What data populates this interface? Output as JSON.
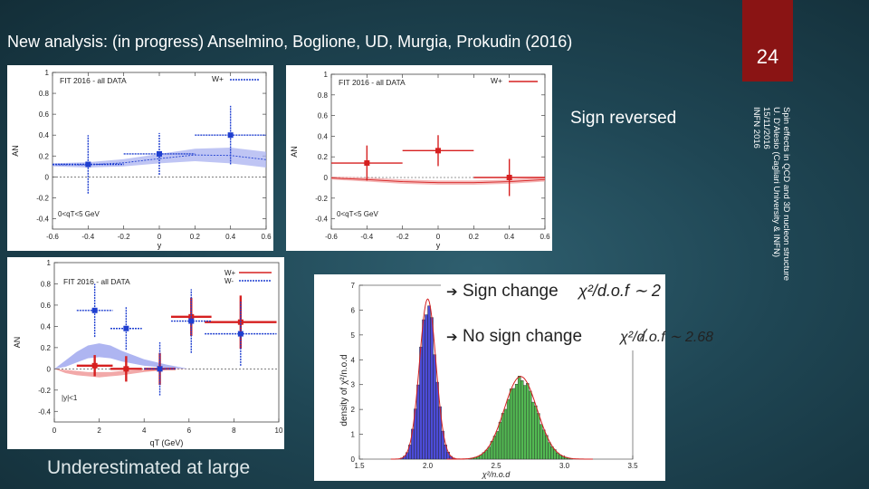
{
  "title": "New analysis: (in progress) Anselmino, Boglione, UD, Murgia, Prokudin (2016)",
  "slide_number": "24",
  "side_note": [
    "Spin effects in QCD and 3D nucleon structure",
    "U. D'Alesio (Cagliari University & INFN)",
    "15/11/2016",
    "INFN 2016"
  ],
  "sign_reversed": "Sign reversed",
  "underestimated": "Underestimated at large",
  "chart_data": [
    {
      "type": "scatter",
      "panel": "top-left",
      "title": "FIT 2016 - all DATA",
      "legend": [
        "W+"
      ],
      "cut": "0<qT<5 GeV",
      "xlabel": "y",
      "ylabel": "AN",
      "xlim": [
        -0.6,
        0.6
      ],
      "ylim": [
        -0.5,
        1.0
      ],
      "xticks": [
        "-0.6",
        "-0.4",
        "-0.2",
        "0",
        "0.2",
        "0.4",
        "0.6"
      ],
      "yticks": [
        "-0.4",
        "-0.2",
        "0",
        "0.2",
        "0.4",
        "0.6",
        "0.8",
        "1"
      ],
      "points": [
        {
          "x": -0.4,
          "y": 0.12,
          "xerr": 0.2,
          "yerr": 0.28
        },
        {
          "x": 0.0,
          "y": 0.22,
          "xerr": 0.2,
          "yerr": 0.2
        },
        {
          "x": 0.4,
          "y": 0.4,
          "xerr": 0.2,
          "yerr": 0.28
        }
      ],
      "band": {
        "x": [
          -0.6,
          -0.4,
          -0.2,
          0,
          0.2,
          0.4,
          0.6
        ],
        "lo": [
          0.1,
          0.09,
          0.1,
          0.13,
          0.15,
          0.13,
          0.09
        ],
        "hi": [
          0.13,
          0.14,
          0.17,
          0.22,
          0.27,
          0.28,
          0.24
        ]
      }
    },
    {
      "type": "scatter",
      "panel": "top-right",
      "title": "FIT 2016 - all DATA",
      "legend": [
        "W+"
      ],
      "cut": "0<qT<5 GeV",
      "xlabel": "y",
      "ylabel": "AN",
      "xlim": [
        -0.6,
        0.6
      ],
      "ylim": [
        -0.5,
        1.0
      ],
      "xticks": [
        "-0.6",
        "-0.4",
        "-0.2",
        "0",
        "0.2",
        "0.4",
        "0.6"
      ],
      "yticks": [
        "-0.4",
        "-0.2",
        "0",
        "0.2",
        "0.4",
        "0.6",
        "0.8",
        "1"
      ],
      "points": [
        {
          "x": -0.4,
          "y": 0.14,
          "xerr": 0.2,
          "yerr": 0.17
        },
        {
          "x": 0.0,
          "y": 0.26,
          "xerr": 0.2,
          "yerr": 0.15
        },
        {
          "x": 0.4,
          "y": 0.0,
          "xerr": 0.2,
          "yerr": 0.18
        }
      ],
      "band": {
        "x": [
          -0.6,
          -0.4,
          -0.2,
          0,
          0.2,
          0.4,
          0.6
        ],
        "lo": [
          -0.02,
          -0.04,
          -0.06,
          -0.07,
          -0.07,
          -0.06,
          -0.04
        ],
        "hi": [
          0.01,
          0.0,
          -0.02,
          -0.03,
          -0.03,
          -0.02,
          0.0
        ]
      }
    },
    {
      "type": "scatter",
      "panel": "bottom-left",
      "title": "FIT 2016 - all DATA",
      "legend": [
        "W+",
        "W-"
      ],
      "cut": "|y|<1",
      "xlabel": "qT (GeV)",
      "ylabel": "AN",
      "xlim": [
        0,
        10
      ],
      "ylim": [
        -0.5,
        1.0
      ],
      "xticks": [
        "0",
        "2",
        "4",
        "6",
        "8",
        "10"
      ],
      "yticks": [
        "-0.4",
        "-0.2",
        "0",
        "0.2",
        "0.4",
        "0.6",
        "0.8",
        "1"
      ],
      "series": [
        {
          "name": "W+",
          "color": "#d62020",
          "points": [
            {
              "x": 1.8,
              "y": 0.03,
              "xerr": 0.8,
              "yerr": 0.1
            },
            {
              "x": 3.2,
              "y": 0.0,
              "xerr": 0.7,
              "yerr": 0.12
            },
            {
              "x": 4.7,
              "y": 0.0,
              "xerr": 0.7,
              "yerr": 0.15
            },
            {
              "x": 6.1,
              "y": 0.49,
              "xerr": 0.9,
              "yerr": 0.18
            },
            {
              "x": 8.3,
              "y": 0.44,
              "xerr": 1.6,
              "yerr": 0.25
            }
          ]
        },
        {
          "name": "W-",
          "color": "#1f3fd0",
          "points": [
            {
              "x": 1.8,
              "y": 0.55,
              "xerr": 0.8,
              "yerr": 0.25
            },
            {
              "x": 3.2,
              "y": 0.38,
              "xerr": 0.7,
              "yerr": 0.2
            },
            {
              "x": 4.7,
              "y": 0.0,
              "xerr": 0.7,
              "yerr": 0.25
            },
            {
              "x": 6.1,
              "y": 0.45,
              "xerr": 0.9,
              "yerr": 0.3
            },
            {
              "x": 8.3,
              "y": 0.33,
              "xerr": 1.6,
              "yerr": 0.3
            }
          ]
        }
      ]
    },
    {
      "type": "histogram",
      "panel": "bottom-right",
      "xlabel": "χ²/n.o.d",
      "ylabel": "density of χ²/n.o.d",
      "xlim": [
        1.5,
        3.5
      ],
      "ylim": [
        0,
        7
      ],
      "xticks": [
        "1.5",
        "2.0",
        "2.5",
        "3.0",
        "3.5"
      ],
      "yticks": [
        "0",
        "1",
        "2",
        "3",
        "4",
        "5",
        "6",
        "7"
      ],
      "series": [
        {
          "name": "Sign change",
          "color": "#4c4cd8",
          "mean": 2.0,
          "sigma": 0.06,
          "peak": 6.2
        },
        {
          "name": "No sign change",
          "color": "#52b852",
          "mean": 2.68,
          "sigma": 0.12,
          "peak": 3.2
        }
      ],
      "annotations": [
        {
          "label": "Sign change",
          "formula": "χ²/d.o.f ∼ 2"
        },
        {
          "label": "No sign change",
          "formula": "χ²/d.o.f ∼ 2.68"
        }
      ]
    }
  ]
}
